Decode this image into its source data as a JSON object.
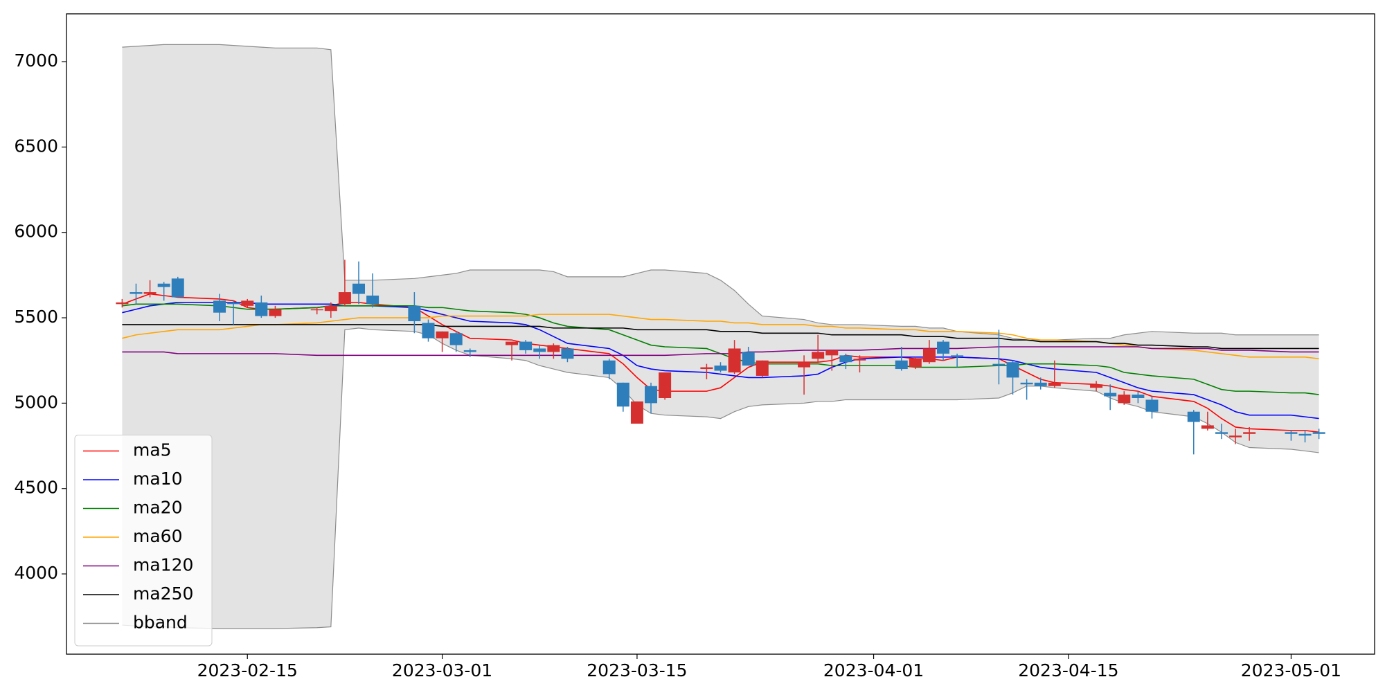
{
  "chart_data": {
    "type": "candlestick",
    "x": [
      "2023-02-06",
      "2023-02-07",
      "2023-02-08",
      "2023-02-09",
      "2023-02-10",
      "2023-02-13",
      "2023-02-14",
      "2023-02-15",
      "2023-02-16",
      "2023-02-17",
      "2023-02-20",
      "2023-02-21",
      "2023-02-22",
      "2023-02-23",
      "2023-02-24",
      "2023-02-27",
      "2023-02-28",
      "2023-03-01",
      "2023-03-02",
      "2023-03-03",
      "2023-03-06",
      "2023-03-07",
      "2023-03-08",
      "2023-03-09",
      "2023-03-10",
      "2023-03-13",
      "2023-03-14",
      "2023-03-15",
      "2023-03-16",
      "2023-03-17",
      "2023-03-20",
      "2023-03-21",
      "2023-03-22",
      "2023-03-23",
      "2023-03-24",
      "2023-03-27",
      "2023-03-28",
      "2023-03-29",
      "2023-03-30",
      "2023-03-31",
      "2023-04-03",
      "2023-04-04",
      "2023-04-05",
      "2023-04-06",
      "2023-04-07",
      "2023-04-10",
      "2023-04-11",
      "2023-04-12",
      "2023-04-13",
      "2023-04-14",
      "2023-04-17",
      "2023-04-18",
      "2023-04-19",
      "2023-04-20",
      "2023-04-21",
      "2023-04-24",
      "2023-04-25",
      "2023-04-26",
      "2023-04-27",
      "2023-04-28",
      "2023-05-01",
      "2023-05-02",
      "2023-05-03"
    ],
    "open": [
      5580,
      5650,
      5640,
      5700,
      5730,
      5600,
      5590,
      5570,
      5590,
      5510,
      5550,
      5540,
      5580,
      5700,
      5630,
      5570,
      5470,
      5380,
      5410,
      5310,
      5340,
      5360,
      5320,
      5300,
      5320,
      5250,
      5120,
      4880,
      5100,
      5030,
      5200,
      5220,
      5180,
      5300,
      5160,
      5210,
      5260,
      5280,
      5280,
      5250,
      5250,
      5210,
      5240,
      5360,
      5280,
      5230,
      5240,
      5120,
      5120,
      5100,
      5090,
      5060,
      5000,
      5050,
      5020,
      4950,
      4850,
      4830,
      4800,
      4820,
      4830,
      4820,
      4830
    ],
    "high": [
      5610,
      5700,
      5720,
      5710,
      5740,
      5640,
      5600,
      5610,
      5630,
      5570,
      5560,
      5590,
      5840,
      5830,
      5760,
      5650,
      5490,
      5420,
      5420,
      5320,
      5350,
      5370,
      5340,
      5350,
      5330,
      5260,
      5120,
      5010,
      5120,
      5180,
      5230,
      5240,
      5370,
      5330,
      5250,
      5280,
      5400,
      5310,
      5290,
      5280,
      5330,
      5270,
      5370,
      5370,
      5290,
      5430,
      5250,
      5140,
      5150,
      5250,
      5130,
      5110,
      5070,
      5070,
      5040,
      4960,
      4950,
      4880,
      4850,
      4860,
      4840,
      4840,
      4850
    ],
    "low": [
      5560,
      5580,
      5620,
      5600,
      5620,
      5480,
      5460,
      5560,
      5500,
      5500,
      5520,
      5500,
      5570,
      5580,
      5560,
      5410,
      5360,
      5300,
      5300,
      5270,
      5250,
      5290,
      5260,
      5260,
      5240,
      5140,
      4950,
      4880,
      4940,
      5020,
      5140,
      5180,
      5170,
      5220,
      5150,
      5050,
      5240,
      5190,
      5200,
      5180,
      5190,
      5200,
      5230,
      5250,
      5210,
      5110,
      5050,
      5020,
      5080,
      5090,
      5070,
      4960,
      4990,
      5000,
      4910,
      4700,
      4840,
      4790,
      4760,
      4780,
      4780,
      4770,
      4790
    ],
    "close": [
      5590,
      5640,
      5650,
      5680,
      5620,
      5530,
      5580,
      5600,
      5510,
      5550,
      5550,
      5570,
      5650,
      5640,
      5580,
      5480,
      5380,
      5420,
      5340,
      5300,
      5360,
      5310,
      5300,
      5340,
      5260,
      5170,
      4980,
      5010,
      5000,
      5180,
      5210,
      5190,
      5320,
      5220,
      5250,
      5240,
      5300,
      5310,
      5240,
      5260,
      5200,
      5260,
      5320,
      5290,
      5270,
      5220,
      5150,
      5110,
      5100,
      5120,
      5110,
      5040,
      5050,
      5030,
      4950,
      4890,
      4870,
      4820,
      4810,
      4830,
      4820,
      4810,
      4820
    ],
    "up_color": "#d62f2f",
    "down_color": "#2e7ebc",
    "series": [
      {
        "name": "ma5",
        "color": "#ff0000",
        "values": [
          5580,
          5610,
          5640,
          5630,
          5620,
          5610,
          5600,
          5560,
          5550,
          5550,
          5560,
          5570,
          5590,
          5590,
          5580,
          5560,
          5510,
          5460,
          5420,
          5380,
          5370,
          5350,
          5340,
          5330,
          5320,
          5290,
          5230,
          5150,
          5080,
          5070,
          5070,
          5090,
          5150,
          5210,
          5240,
          5240,
          5240,
          5250,
          5280,
          5270,
          5270,
          5260,
          5260,
          5250,
          5270,
          5260,
          5220,
          5180,
          5140,
          5120,
          5110,
          5100,
          5080,
          5070,
          5040,
          5010,
          4970,
          4910,
          4860,
          4850,
          4840,
          4840,
          4830
        ]
      },
      {
        "name": "ma10",
        "color": "#0000ff",
        "values": [
          5530,
          5550,
          5570,
          5580,
          5590,
          5590,
          5590,
          5590,
          5580,
          5580,
          5580,
          5580,
          5570,
          5570,
          5570,
          5560,
          5540,
          5520,
          5500,
          5480,
          5470,
          5460,
          5430,
          5390,
          5350,
          5320,
          5280,
          5220,
          5200,
          5190,
          5180,
          5170,
          5160,
          5150,
          5150,
          5160,
          5170,
          5210,
          5240,
          5260,
          5270,
          5270,
          5270,
          5270,
          5270,
          5260,
          5250,
          5230,
          5210,
          5200,
          5180,
          5150,
          5120,
          5090,
          5070,
          5050,
          5020,
          4990,
          4950,
          4930,
          4930,
          4920,
          4910
        ]
      },
      {
        "name": "ma20",
        "color": "#008000",
        "values": [
          5570,
          5580,
          5580,
          5580,
          5580,
          5570,
          5560,
          5550,
          5550,
          5550,
          5560,
          5570,
          5570,
          5570,
          5570,
          5570,
          5560,
          5560,
          5550,
          5540,
          5530,
          5520,
          5500,
          5470,
          5450,
          5430,
          5400,
          5370,
          5340,
          5330,
          5320,
          5290,
          5260,
          5240,
          5230,
          5230,
          5230,
          5220,
          5220,
          5220,
          5220,
          5210,
          5210,
          5210,
          5210,
          5220,
          5220,
          5230,
          5230,
          5230,
          5220,
          5210,
          5180,
          5170,
          5160,
          5140,
          5110,
          5080,
          5070,
          5070,
          5060,
          5060,
          5050
        ]
      },
      {
        "name": "ma60",
        "color": "#ffa500",
        "values": [
          5380,
          5400,
          5410,
          5420,
          5430,
          5430,
          5440,
          5450,
          5460,
          5460,
          5470,
          5480,
          5490,
          5500,
          5500,
          5500,
          5500,
          5510,
          5510,
          5510,
          5510,
          5510,
          5520,
          5520,
          5520,
          5520,
          5510,
          5500,
          5490,
          5490,
          5480,
          5480,
          5470,
          5470,
          5460,
          5460,
          5450,
          5450,
          5440,
          5440,
          5430,
          5430,
          5420,
          5420,
          5420,
          5410,
          5400,
          5380,
          5370,
          5370,
          5360,
          5350,
          5340,
          5330,
          5320,
          5310,
          5300,
          5290,
          5280,
          5270,
          5270,
          5270,
          5260
        ]
      },
      {
        "name": "ma120",
        "color": "#800080",
        "values": [
          5300,
          5300,
          5300,
          5300,
          5290,
          5290,
          5290,
          5290,
          5290,
          5290,
          5280,
          5280,
          5280,
          5280,
          5280,
          5280,
          5280,
          5280,
          5280,
          5280,
          5280,
          5280,
          5280,
          5280,
          5280,
          5280,
          5280,
          5280,
          5280,
          5280,
          5290,
          5290,
          5290,
          5300,
          5300,
          5310,
          5310,
          5310,
          5310,
          5310,
          5320,
          5320,
          5320,
          5320,
          5320,
          5330,
          5330,
          5330,
          5330,
          5330,
          5330,
          5330,
          5330,
          5330,
          5320,
          5320,
          5320,
          5310,
          5310,
          5310,
          5300,
          5300,
          5300
        ]
      },
      {
        "name": "ma250",
        "color": "#000000",
        "values": [
          5460,
          5460,
          5460,
          5460,
          5460,
          5460,
          5460,
          5460,
          5460,
          5460,
          5460,
          5460,
          5460,
          5460,
          5460,
          5460,
          5460,
          5450,
          5450,
          5450,
          5450,
          5450,
          5450,
          5440,
          5440,
          5440,
          5440,
          5430,
          5430,
          5430,
          5430,
          5420,
          5420,
          5420,
          5410,
          5410,
          5410,
          5400,
          5400,
          5400,
          5400,
          5390,
          5390,
          5390,
          5380,
          5380,
          5370,
          5370,
          5360,
          5360,
          5360,
          5350,
          5350,
          5340,
          5340,
          5330,
          5330,
          5320,
          5320,
          5320,
          5320,
          5320,
          5320
        ]
      }
    ],
    "bands": [
      {
        "name": "bband",
        "color": "#8c8c8c",
        "fill": "#e3e3e3",
        "upper": [
          7085,
          7090,
          7095,
          7100,
          7100,
          7100,
          7095,
          7090,
          7085,
          7080,
          7080,
          7070,
          5720,
          5720,
          5720,
          5730,
          5740,
          5750,
          5760,
          5780,
          5780,
          5780,
          5780,
          5770,
          5740,
          5740,
          5740,
          5760,
          5780,
          5780,
          5760,
          5720,
          5660,
          5580,
          5510,
          5490,
          5470,
          5460,
          5460,
          5460,
          5450,
          5450,
          5440,
          5440,
          5420,
          5400,
          5380,
          5370,
          5370,
          5370,
          5380,
          5380,
          5400,
          5410,
          5420,
          5410,
          5410,
          5410,
          5400,
          5400,
          5400,
          5400,
          5400
        ],
        "lower": [
          3700,
          3695,
          3690,
          3690,
          3685,
          3680,
          3680,
          3680,
          3680,
          3680,
          3685,
          3690,
          5430,
          5440,
          5430,
          5420,
          5400,
          5350,
          5310,
          5280,
          5260,
          5250,
          5220,
          5200,
          5180,
          5150,
          5080,
          4990,
          4940,
          4930,
          4920,
          4910,
          4950,
          4980,
          4990,
          5000,
          5010,
          5010,
          5020,
          5020,
          5020,
          5020,
          5020,
          5020,
          5020,
          5030,
          5060,
          5100,
          5100,
          5090,
          5070,
          5030,
          5000,
          4980,
          4950,
          4920,
          4880,
          4830,
          4770,
          4740,
          4730,
          4720,
          4710
        ]
      }
    ],
    "xlim": [
      "2023-02-02",
      "2023-05-07"
    ],
    "ylim": [
      3530,
      7280
    ],
    "xticks": [
      "2023-02-15",
      "2023-03-01",
      "2023-03-15",
      "2023-04-01",
      "2023-04-15",
      "2023-05-01"
    ],
    "yticks": [
      4000,
      4500,
      5000,
      5500,
      6000,
      6500,
      7000
    ],
    "legend": "lower left"
  }
}
